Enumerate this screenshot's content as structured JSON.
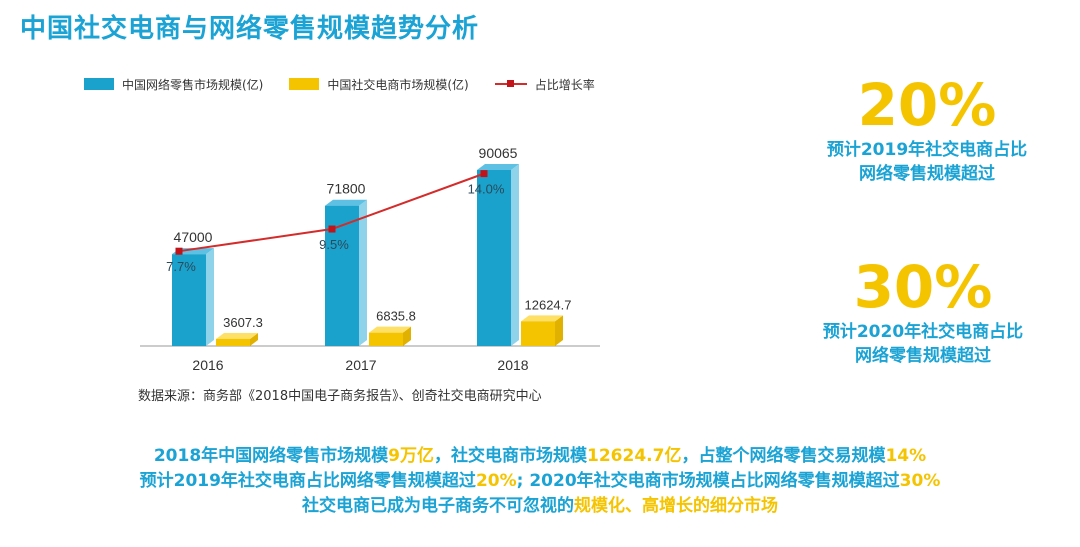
{
  "title": "中国社交电商与网络零售规模趋势分析",
  "colors": {
    "accent": "#1aa3d4",
    "highlight": "#f5c400",
    "line": "#d42b2b"
  },
  "chart_data": {
    "type": "bar",
    "categories": [
      "2016",
      "2017",
      "2018"
    ],
    "series": [
      {
        "name": "中国网络零售市场规模(亿)",
        "kind": "bar",
        "values": [
          47000,
          71800,
          90065
        ],
        "value_labels": [
          "47000",
          "71800",
          "90065"
        ],
        "color": "#1ba2cc"
      },
      {
        "name": "中国社交电商市场规模(亿)",
        "kind": "bar",
        "values": [
          3607.3,
          6835.8,
          12624.7
        ],
        "value_labels": [
          "3607.3",
          "6835.8",
          "12624.7"
        ],
        "color": "#f5c400"
      },
      {
        "name": "占比增长率",
        "kind": "line",
        "values": [
          7.7,
          9.5,
          14.0
        ],
        "value_labels": [
          "7.7%",
          "9.5%",
          "14.0%"
        ],
        "color": "#d42b2b"
      }
    ],
    "ylim": [
      0,
      100000
    ],
    "grid": false,
    "legend": "top-left",
    "source": "数据来源：商务部《2018中国电子商务报告》、创奇社交电商研究中心"
  },
  "callouts": [
    {
      "value": "20%",
      "line1": "预计2019年社交电商占比",
      "line2": "网络零售规模超过"
    },
    {
      "value": "30%",
      "line1": "预计2020年社交电商占比",
      "line2": "网络零售规模超过"
    }
  ],
  "summary": {
    "line1": [
      {
        "text": "2018年中国网络零售市场规模",
        "hl": false
      },
      {
        "text": "9万亿",
        "hl": true
      },
      {
        "text": "，社交电商市场规模",
        "hl": false
      },
      {
        "text": "12624.7亿",
        "hl": true
      },
      {
        "text": "，占整个网络零售交易规模",
        "hl": false
      },
      {
        "text": "14%",
        "hl": true
      }
    ],
    "line2": [
      {
        "text": "预计2019年社交电商占比网络零售规模超过",
        "hl": false
      },
      {
        "text": "20%",
        "hl": true
      },
      {
        "text": "; 2020年社交电商市场规模占比网络零售规模超过",
        "hl": false
      },
      {
        "text": "30%",
        "hl": true
      }
    ],
    "line3": [
      {
        "text": "社交电商已成为电子商务不可忽视的",
        "hl": false
      },
      {
        "text": "规模化、高增长的细分市场",
        "hl": true
      }
    ]
  }
}
